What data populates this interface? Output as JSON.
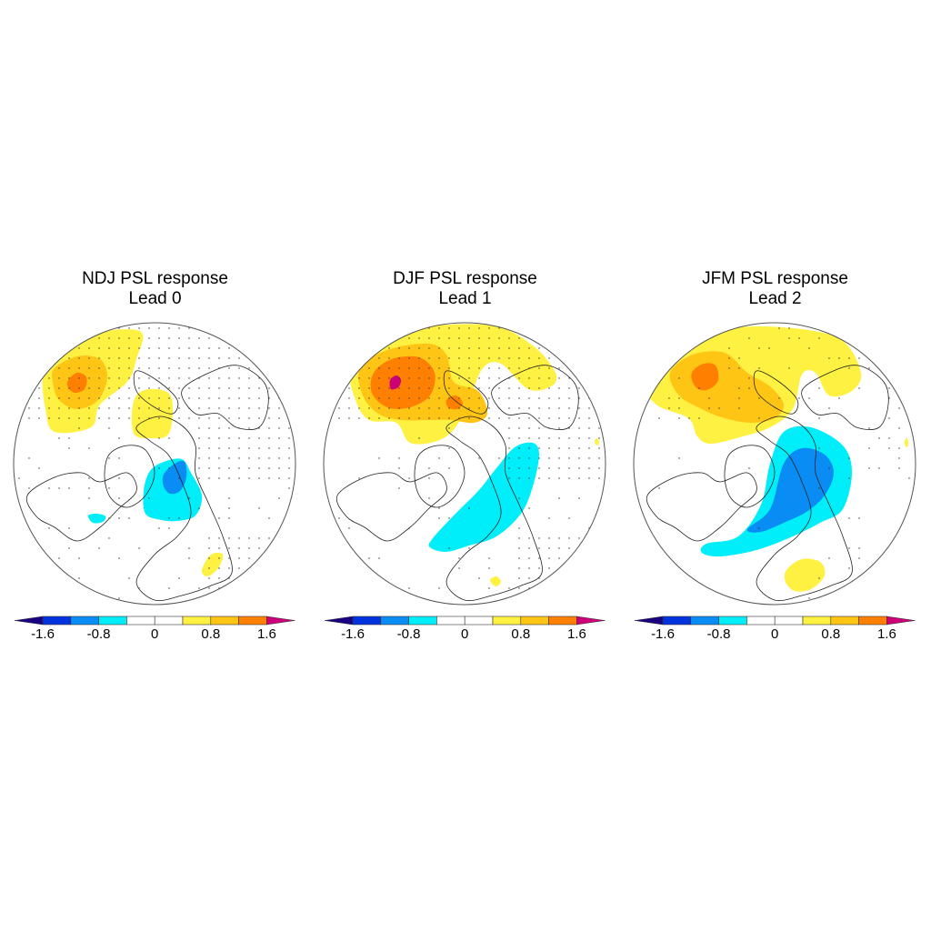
{
  "chart_data": [
    {
      "type": "heatmap",
      "projection": "north-polar-stereographic",
      "title": "NDJ PSL response",
      "subtitle": "Lead 0",
      "stippling": "significance dots over large portions of the hemisphere",
      "features": [
        {
          "region": "North Pacific / Aleutian",
          "sign": "positive",
          "max_level": 1.6,
          "levels": [
            0.4,
            0.8,
            1.2
          ]
        },
        {
          "region": "Eastern Siberia / Bering",
          "sign": "positive",
          "levels": [
            0.4
          ]
        },
        {
          "region": "Barents-Kara / Scandinavia",
          "sign": "negative",
          "levels": [
            -0.4,
            -0.8
          ]
        },
        {
          "region": "North Atlantic (small)",
          "sign": "negative",
          "levels": [
            -0.4
          ]
        },
        {
          "region": "Black Sea / Caspian",
          "sign": "positive",
          "levels": [
            0.4
          ]
        }
      ]
    },
    {
      "type": "heatmap",
      "projection": "north-polar-stereographic",
      "title": "DJF PSL response",
      "subtitle": "Lead 1",
      "stippling": "significance dots over large portions of the hemisphere",
      "features": [
        {
          "region": "North Pacific / Aleutian",
          "sign": "positive",
          "levels": [
            0.4,
            0.8,
            1.2,
            1.6
          ]
        },
        {
          "region": "Eastern Siberia",
          "sign": "positive",
          "levels": [
            0.4,
            0.8,
            1.2
          ]
        },
        {
          "region": "Arctic Siberia / Laptev",
          "sign": "positive",
          "levels": [
            0.4
          ]
        },
        {
          "region": "Scandinavia to Ural (band)",
          "sign": "negative",
          "levels": [
            -0.4
          ]
        },
        {
          "region": "Mediterranean (small)",
          "sign": "positive",
          "levels": [
            0.4
          ]
        }
      ]
    },
    {
      "type": "heatmap",
      "projection": "north-polar-stereographic",
      "title": "JFM PSL response",
      "subtitle": "Lead 2",
      "stippling": "sparse significance dots",
      "features": [
        {
          "region": "North Pacific / Aleutian",
          "sign": "positive",
          "levels": [
            0.4,
            0.8,
            1.2
          ]
        },
        {
          "region": "Siberia / Arctic",
          "sign": "positive",
          "levels": [
            0.4
          ]
        },
        {
          "region": "North Atlantic to Barents-Kara",
          "sign": "negative",
          "levels": [
            -0.4,
            -0.8
          ]
        },
        {
          "region": "Mediterranean / Black Sea",
          "sign": "positive",
          "levels": [
            0.4
          ]
        }
      ]
    }
  ],
  "colorbar": {
    "levels": [
      -1.6,
      -1.2,
      -0.8,
      -0.4,
      0,
      0.4,
      0.8,
      1.2,
      1.6
    ],
    "tick_labels": [
      "-1.6",
      "-0.8",
      "0",
      "0.8",
      "1.6"
    ],
    "tick_values": [
      -1.6,
      -0.8,
      0,
      0.8,
      1.6
    ],
    "colors": [
      "#1a0080",
      "#0033dd",
      "#0a8cf5",
      "#00eefa",
      "#ffffff",
      "#ffffff",
      "#fff141",
      "#ffc515",
      "#ff7f00",
      "#cc0077"
    ],
    "extend": "both"
  },
  "panels": [
    {
      "title": "NDJ PSL response",
      "subtitle": "Lead 0"
    },
    {
      "title": "DJF PSL response",
      "subtitle": "Lead 1"
    },
    {
      "title": "JFM PSL response",
      "subtitle": "Lead 2"
    }
  ]
}
